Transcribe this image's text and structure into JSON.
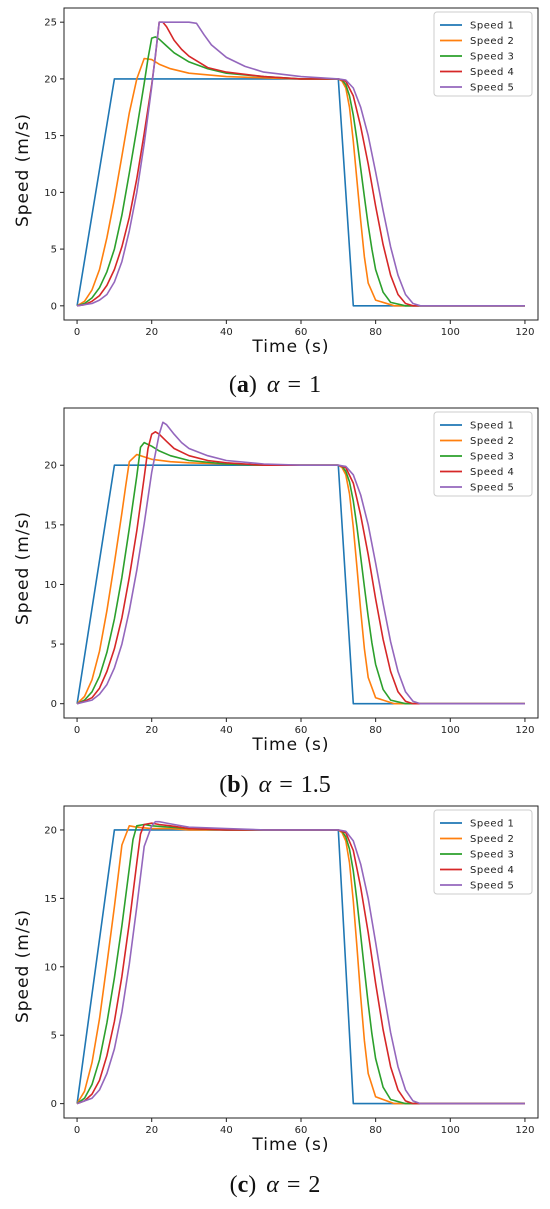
{
  "palette": {
    "Speed 1": "#1f77b4",
    "Speed 2": "#ff7f0e",
    "Speed 3": "#2ca02c",
    "Speed 4": "#d62728",
    "Speed 5": "#9467bd"
  },
  "chart_data": [
    {
      "type": "line",
      "caption": {
        "letter": "a",
        "param": "α",
        "eq": "=",
        "value": "1"
      },
      "xlabel": "Time (s)",
      "ylabel": "Speed (m/s)",
      "xlim": [
        -3.5,
        123.5
      ],
      "ylim": [
        -1.25,
        26.25
      ],
      "xticks": [
        "0",
        "20",
        "40",
        "60",
        "80",
        "100",
        "120"
      ],
      "yticks": [
        "0",
        "5",
        "10",
        "15",
        "20",
        "25"
      ],
      "grid": false,
      "legend": "top-right",
      "series": [
        {
          "name": "Speed 1",
          "x": [
            0,
            10,
            70,
            74,
            120
          ],
          "y": [
            0,
            20,
            20,
            0,
            0
          ]
        },
        {
          "name": "Speed 2",
          "x": [
            0,
            2,
            4,
            6,
            8,
            10,
            12,
            14,
            16,
            18,
            20,
            22,
            25,
            30,
            40,
            50,
            60,
            70,
            71,
            72,
            73,
            74,
            75,
            76,
            77,
            78,
            80,
            85,
            120
          ],
          "y": [
            0,
            0.4,
            1.4,
            3.2,
            6.0,
            9.4,
            13.2,
            17.0,
            20.0,
            21.8,
            21.7,
            21.3,
            20.9,
            20.5,
            20.2,
            20.1,
            20.0,
            20.0,
            19.8,
            19.2,
            17.5,
            14.5,
            11,
            7.5,
            4.3,
            2,
            0.5,
            0,
            0
          ]
        },
        {
          "name": "Speed 3",
          "x": [
            0,
            2,
            4,
            6,
            8,
            10,
            12,
            14,
            16,
            18,
            19,
            20,
            21,
            22,
            24,
            26,
            30,
            35,
            40,
            50,
            60,
            70,
            71,
            72,
            73,
            74,
            75,
            76,
            77,
            78,
            79,
            80,
            82,
            84,
            88,
            120
          ],
          "y": [
            0,
            0.2,
            0.7,
            1.6,
            3.0,
            5.0,
            8.0,
            11.7,
            15.6,
            19.6,
            21.8,
            23.6,
            23.7,
            23.5,
            22.9,
            22.3,
            21.5,
            20.9,
            20.5,
            20.2,
            20.0,
            20.0,
            19.9,
            19.5,
            18.5,
            16.8,
            14.6,
            12.1,
            9.6,
            7.1,
            5.0,
            3.2,
            1.2,
            0.3,
            0,
            0
          ]
        },
        {
          "name": "Speed 4",
          "x": [
            0,
            2,
            4,
            6,
            8,
            10,
            12,
            14,
            16,
            18,
            20,
            21,
            22,
            23,
            24,
            26,
            28,
            30,
            35,
            40,
            50,
            60,
            70,
            72,
            74,
            76,
            78,
            80,
            82,
            84,
            86,
            88,
            90,
            120
          ],
          "y": [
            0,
            0.1,
            0.4,
            0.9,
            1.8,
            3.2,
            5.2,
            7.8,
            11.2,
            15.2,
            19.5,
            22.0,
            25.0,
            25.0,
            24.6,
            23.4,
            22.6,
            22.0,
            21.0,
            20.6,
            20.2,
            20.0,
            20.0,
            19.8,
            18.5,
            15.8,
            12.5,
            8.8,
            5.4,
            2.7,
            1.0,
            0.2,
            0,
            0
          ]
        },
        {
          "name": "Speed 5",
          "x": [
            0,
            4,
            6,
            8,
            10,
            12,
            14,
            16,
            18,
            20,
            22,
            24,
            26,
            28,
            30,
            32,
            34,
            36,
            40,
            45,
            50,
            60,
            70,
            72,
            74,
            76,
            78,
            80,
            82,
            84,
            86,
            88,
            90,
            92,
            120
          ],
          "y": [
            0,
            0.2,
            0.5,
            1.0,
            2.1,
            3.9,
            6.6,
            10.0,
            14.3,
            19.3,
            25.0,
            25.0,
            25.0,
            25.0,
            25.0,
            24.9,
            23.9,
            23.0,
            21.9,
            21.1,
            20.6,
            20.2,
            20.0,
            19.9,
            19.2,
            17.5,
            15.0,
            11.8,
            8.4,
            5.2,
            2.7,
            1.0,
            0.2,
            0,
            0
          ]
        }
      ]
    },
    {
      "type": "line",
      "caption": {
        "letter": "b",
        "param": "α",
        "eq": "=",
        "value": "1.5"
      },
      "xlabel": "Time (s)",
      "ylabel": "Speed (m/s)",
      "xlim": [
        -3.5,
        123.5
      ],
      "ylim": [
        -1.2,
        24.8
      ],
      "xticks": [
        "0",
        "20",
        "40",
        "60",
        "80",
        "100",
        "120"
      ],
      "yticks": [
        "0",
        "5",
        "10",
        "15",
        "20"
      ],
      "grid": false,
      "legend": "top-right",
      "series": [
        {
          "name": "Speed 1",
          "x": [
            0,
            10,
            70,
            74,
            120
          ],
          "y": [
            0,
            20,
            20,
            0,
            0
          ]
        },
        {
          "name": "Speed 2",
          "x": [
            0,
            2,
            4,
            6,
            8,
            10,
            12,
            13,
            14,
            16,
            18,
            20,
            25,
            30,
            40,
            50,
            60,
            70,
            71,
            72,
            73,
            74,
            75,
            76,
            77,
            78,
            80,
            85,
            120
          ],
          "y": [
            0,
            0.6,
            2.0,
            4.4,
            7.8,
            11.8,
            16.0,
            18.2,
            20.3,
            20.9,
            20.7,
            20.5,
            20.3,
            20.2,
            20.1,
            20.0,
            20.0,
            20.0,
            19.8,
            19.2,
            17.6,
            14.8,
            11.4,
            7.8,
            4.6,
            2.2,
            0.5,
            0,
            0
          ]
        },
        {
          "name": "Speed 3",
          "x": [
            0,
            2,
            4,
            6,
            8,
            10,
            12,
            14,
            16,
            17,
            18,
            20,
            22,
            25,
            30,
            40,
            50,
            60,
            70,
            71,
            72,
            73,
            74,
            75,
            76,
            77,
            78,
            79,
            80,
            82,
            84,
            88,
            120
          ],
          "y": [
            0,
            0.3,
            1.0,
            2.3,
            4.3,
            7.1,
            10.6,
            14.7,
            19.1,
            21.5,
            21.9,
            21.6,
            21.2,
            20.8,
            20.4,
            20.1,
            20.0,
            20.0,
            20.0,
            19.9,
            19.5,
            18.6,
            17.0,
            14.8,
            12.3,
            9.8,
            7.3,
            5.1,
            3.3,
            1.2,
            0.3,
            0,
            0
          ]
        },
        {
          "name": "Speed 4",
          "x": [
            0,
            2,
            4,
            6,
            8,
            10,
            12,
            14,
            16,
            18,
            19,
            20,
            21,
            22,
            24,
            26,
            30,
            35,
            40,
            50,
            60,
            70,
            72,
            74,
            76,
            78,
            80,
            82,
            84,
            86,
            88,
            90,
            120
          ],
          "y": [
            0,
            0.2,
            0.5,
            1.3,
            2.7,
            4.6,
            7.2,
            10.6,
            14.5,
            19.0,
            21.4,
            22.6,
            22.8,
            22.6,
            22.0,
            21.4,
            20.8,
            20.4,
            20.2,
            20.0,
            20.0,
            20.0,
            19.8,
            18.5,
            15.8,
            12.5,
            8.8,
            5.4,
            2.7,
            1.0,
            0.2,
            0,
            0
          ]
        },
        {
          "name": "Speed 5",
          "x": [
            0,
            4,
            6,
            8,
            10,
            12,
            14,
            16,
            18,
            20,
            22,
            23,
            24,
            26,
            28,
            30,
            35,
            40,
            50,
            60,
            70,
            72,
            74,
            76,
            78,
            80,
            82,
            84,
            86,
            88,
            90,
            92,
            120
          ],
          "y": [
            0,
            0.3,
            0.8,
            1.6,
            3.0,
            5.0,
            7.8,
            11.2,
            15.1,
            19.4,
            22.6,
            23.6,
            23.4,
            22.6,
            21.9,
            21.4,
            20.8,
            20.4,
            20.1,
            20.0,
            20.0,
            19.9,
            19.2,
            17.5,
            15.0,
            11.8,
            8.4,
            5.2,
            2.7,
            1.0,
            0.2,
            0,
            0
          ]
        }
      ]
    },
    {
      "type": "line",
      "caption": {
        "letter": "c",
        "param": "α",
        "eq": "=",
        "value": "2"
      },
      "xlabel": "Time (s)",
      "ylabel": "Speed (m/s)",
      "xlim": [
        -3.5,
        123.5
      ],
      "ylim": [
        -1.05,
        21.75
      ],
      "xticks": [
        "0",
        "20",
        "40",
        "60",
        "80",
        "100",
        "120"
      ],
      "yticks": [
        "0",
        "5",
        "10",
        "15",
        "20"
      ],
      "grid": false,
      "legend": "top-right",
      "series": [
        {
          "name": "Speed 1",
          "x": [
            0,
            10,
            70,
            74,
            120
          ],
          "y": [
            0,
            20,
            20,
            0,
            0
          ]
        },
        {
          "name": "Speed 2",
          "x": [
            0,
            2,
            4,
            6,
            8,
            10,
            11,
            12,
            14,
            16,
            20,
            25,
            30,
            40,
            50,
            60,
            70,
            71,
            72,
            73,
            74,
            75,
            76,
            77,
            78,
            80,
            85,
            120
          ],
          "y": [
            0,
            0.9,
            3.0,
            6.2,
            10.2,
            14.4,
            16.6,
            18.9,
            20.3,
            20.2,
            20.1,
            20.1,
            20.0,
            20.0,
            20.0,
            20.0,
            20.0,
            19.8,
            19.2,
            17.6,
            14.8,
            11.4,
            7.8,
            4.6,
            2.2,
            0.5,
            0,
            0
          ]
        },
        {
          "name": "Speed 3",
          "x": [
            0,
            2,
            4,
            6,
            8,
            10,
            12,
            14,
            15,
            16,
            18,
            20,
            25,
            30,
            40,
            50,
            60,
            70,
            71,
            72,
            73,
            74,
            75,
            76,
            77,
            78,
            79,
            80,
            82,
            84,
            88,
            120
          ],
          "y": [
            0,
            0.4,
            1.4,
            3.2,
            5.9,
            9.2,
            13.0,
            17.2,
            19.3,
            20.3,
            20.4,
            20.3,
            20.2,
            20.1,
            20.0,
            20.0,
            20.0,
            20.0,
            19.9,
            19.5,
            18.6,
            17.0,
            14.8,
            12.3,
            9.8,
            7.3,
            5.1,
            3.3,
            1.2,
            0.3,
            0,
            0
          ]
        },
        {
          "name": "Speed 4",
          "x": [
            0,
            2,
            4,
            6,
            8,
            10,
            12,
            14,
            16,
            17,
            18,
            20,
            22,
            25,
            30,
            40,
            50,
            60,
            70,
            72,
            74,
            76,
            78,
            80,
            82,
            84,
            86,
            88,
            90,
            120
          ],
          "y": [
            0,
            0.2,
            0.7,
            1.7,
            3.5,
            6.0,
            9.3,
            13.2,
            17.6,
            19.7,
            20.4,
            20.5,
            20.4,
            20.3,
            20.1,
            20.0,
            20.0,
            20.0,
            20.0,
            19.8,
            18.5,
            15.8,
            12.5,
            8.8,
            5.4,
            2.7,
            1.0,
            0.2,
            0,
            0
          ]
        },
        {
          "name": "Speed 5",
          "x": [
            0,
            4,
            6,
            8,
            10,
            12,
            14,
            16,
            18,
            20,
            21,
            22,
            24,
            26,
            30,
            40,
            50,
            60,
            70,
            72,
            74,
            76,
            78,
            80,
            82,
            84,
            86,
            88,
            90,
            92,
            120
          ],
          "y": [
            0,
            0.4,
            1.0,
            2.2,
            4.0,
            6.7,
            10.2,
            14.4,
            18.8,
            20.3,
            20.6,
            20.6,
            20.5,
            20.4,
            20.2,
            20.1,
            20.0,
            20.0,
            20.0,
            19.9,
            19.2,
            17.5,
            15.0,
            11.8,
            8.4,
            5.2,
            2.7,
            1.0,
            0.2,
            0,
            0
          ]
        }
      ]
    }
  ]
}
